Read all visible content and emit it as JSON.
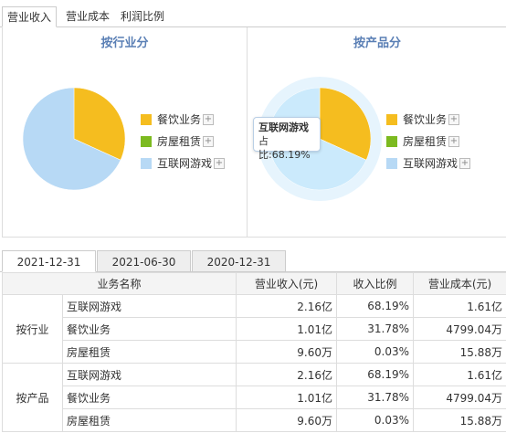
{
  "top_tabs": [
    "营业收入",
    "营业成本",
    "利润比例"
  ],
  "panels": [
    {
      "title": "按行业分",
      "legend": [
        {
          "label": "餐饮业务",
          "color": "#f5bd1f"
        },
        {
          "label": "房屋租赁",
          "color": "#7cba20"
        },
        {
          "label": "互联网游戏",
          "color": "#b7d9f5"
        }
      ]
    },
    {
      "title": "按产品分",
      "legend": [
        {
          "label": "餐饮业务",
          "color": "#f5bd1f"
        },
        {
          "label": "房屋租赁",
          "color": "#7cba20"
        },
        {
          "label": "互联网游戏",
          "color": "#b7d9f5"
        }
      ]
    }
  ],
  "legend_plus": "+",
  "tooltip": {
    "title": "互联网游戏",
    "value": "占比:68.19%"
  },
  "chart_data": [
    {
      "type": "pie",
      "title": "按行业分",
      "categories": [
        "餐饮业务",
        "房屋租赁",
        "互联网游戏"
      ],
      "values": [
        31.78,
        0.03,
        68.19
      ]
    },
    {
      "type": "pie",
      "title": "按产品分",
      "categories": [
        "餐饮业务",
        "房屋租赁",
        "互联网游戏"
      ],
      "values": [
        31.78,
        0.03,
        68.19
      ],
      "highlighted": "互联网游戏"
    }
  ],
  "date_tabs": [
    "2021-12-31",
    "2021-06-30",
    "2020-12-31"
  ],
  "table": {
    "headers": [
      "业务名称",
      "营业收入(元)",
      "收入比例",
      "营业成本(元)"
    ],
    "groups": [
      {
        "label": "按行业",
        "rows": [
          {
            "name": "互联网游戏",
            "revenue": "2.16亿",
            "ratio": "68.19%",
            "cost": "1.61亿"
          },
          {
            "name": "餐饮业务",
            "revenue": "1.01亿",
            "ratio": "31.78%",
            "cost": "4799.04万"
          },
          {
            "name": "房屋租赁",
            "revenue": "9.60万",
            "ratio": "0.03%",
            "cost": "15.88万"
          }
        ]
      },
      {
        "label": "按产品",
        "rows": [
          {
            "name": "互联网游戏",
            "revenue": "2.16亿",
            "ratio": "68.19%",
            "cost": "1.61亿"
          },
          {
            "name": "餐饮业务",
            "revenue": "1.01亿",
            "ratio": "31.78%",
            "cost": "4799.04万"
          },
          {
            "name": "房屋租赁",
            "revenue": "9.60万",
            "ratio": "0.03%",
            "cost": "15.88万"
          }
        ]
      }
    ]
  }
}
